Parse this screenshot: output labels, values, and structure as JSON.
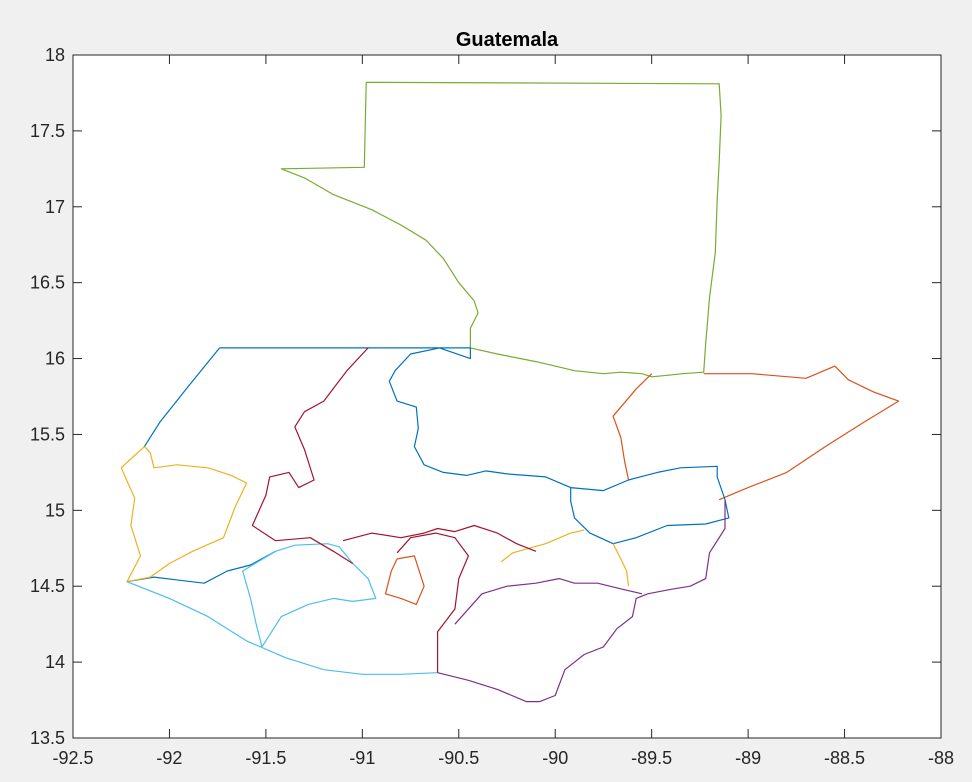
{
  "chart_data": {
    "type": "map",
    "title": "Guatemala",
    "xlim": [
      -92.5,
      -88
    ],
    "ylim": [
      13.5,
      18
    ],
    "xticks": [
      -92.5,
      -92,
      -91.5,
      -91,
      -90.5,
      -90,
      -89.5,
      -89,
      -88.5,
      -88
    ],
    "yticks": [
      13.5,
      14,
      14.5,
      15,
      15.5,
      16,
      16.5,
      17,
      17.5,
      18
    ],
    "xtick_labels": [
      "-92.5",
      "-92",
      "-91.5",
      "-91",
      "-90.5",
      "-90",
      "-89.5",
      "-89",
      "-88.5",
      "-88"
    ],
    "ytick_labels": [
      "13.5",
      "14",
      "14.5",
      "15",
      "15.5",
      "16",
      "16.5",
      "17",
      "17.5",
      "18"
    ],
    "grid": false,
    "box": true,
    "series": [
      {
        "color": "#77ac30",
        "points": [
          [
            -90.98,
            17.82
          ],
          [
            -89.15,
            17.81
          ],
          [
            -89.14,
            17.6
          ],
          [
            -89.15,
            17.3
          ],
          [
            -89.16,
            17.05
          ],
          [
            -89.17,
            16.7
          ],
          [
            -89.2,
            16.4
          ],
          [
            -89.22,
            16.1
          ],
          [
            -89.23,
            15.91
          ],
          [
            -89.34,
            15.9
          ],
          [
            -89.42,
            15.89
          ],
          [
            -89.5,
            15.88
          ],
          [
            -89.55,
            15.9
          ],
          [
            -89.66,
            15.91
          ],
          [
            -89.75,
            15.9
          ],
          [
            -89.9,
            15.92
          ],
          [
            -90.0,
            15.95
          ],
          [
            -90.1,
            15.98
          ],
          [
            -90.3,
            16.03
          ],
          [
            -90.44,
            16.07
          ],
          [
            -90.44,
            16.2
          ],
          [
            -90.4,
            16.3
          ],
          [
            -90.42,
            16.38
          ],
          [
            -90.5,
            16.5
          ],
          [
            -90.58,
            16.66
          ],
          [
            -90.67,
            16.78
          ],
          [
            -90.8,
            16.88
          ],
          [
            -90.95,
            16.98
          ],
          [
            -91.15,
            17.08
          ],
          [
            -91.3,
            17.19
          ],
          [
            -91.42,
            17.25
          ],
          [
            -90.99,
            17.26
          ],
          [
            -90.98,
            17.82
          ]
        ]
      },
      {
        "color": "#d95319",
        "points": [
          [
            -89.23,
            15.9
          ],
          [
            -88.98,
            15.9
          ],
          [
            -88.7,
            15.87
          ],
          [
            -88.55,
            15.95
          ],
          [
            -88.48,
            15.86
          ],
          [
            -88.35,
            15.78
          ],
          [
            -88.22,
            15.72
          ],
          [
            -88.4,
            15.58
          ],
          [
            -88.6,
            15.42
          ],
          [
            -88.8,
            15.25
          ],
          [
            -89.0,
            15.15
          ],
          [
            -89.15,
            15.07
          ]
        ]
      },
      {
        "color": "#d95319",
        "points": [
          [
            -89.5,
            15.9
          ],
          [
            -89.58,
            15.8
          ],
          [
            -89.7,
            15.62
          ],
          [
            -89.66,
            15.48
          ],
          [
            -89.64,
            15.32
          ],
          [
            -89.62,
            15.2
          ]
        ]
      },
      {
        "color": "#0072bd",
        "points": [
          [
            -91.74,
            16.07
          ],
          [
            -90.97,
            16.07
          ],
          [
            -90.44,
            16.07
          ],
          [
            -90.44,
            16.0
          ],
          [
            -90.6,
            16.07
          ],
          [
            -90.75,
            16.03
          ],
          [
            -90.83,
            15.92
          ],
          [
            -90.86,
            15.85
          ],
          [
            -90.82,
            15.72
          ],
          [
            -90.72,
            15.68
          ],
          [
            -90.71,
            15.54
          ],
          [
            -90.73,
            15.42
          ],
          [
            -90.68,
            15.3
          ],
          [
            -90.58,
            15.25
          ],
          [
            -90.46,
            15.23
          ],
          [
            -90.36,
            15.26
          ],
          [
            -90.25,
            15.24
          ],
          [
            -90.05,
            15.22
          ],
          [
            -89.92,
            15.15
          ]
        ]
      },
      {
        "color": "#0072bd",
        "points": [
          [
            -91.74,
            16.07
          ],
          [
            -91.9,
            15.82
          ],
          [
            -92.05,
            15.58
          ],
          [
            -92.13,
            15.42
          ]
        ]
      },
      {
        "color": "#0072bd",
        "points": [
          [
            -89.92,
            15.15
          ],
          [
            -89.75,
            15.13
          ],
          [
            -89.62,
            15.2
          ],
          [
            -89.47,
            15.25
          ],
          [
            -89.35,
            15.28
          ],
          [
            -89.16,
            15.29
          ],
          [
            -89.16,
            15.22
          ],
          [
            -89.12,
            15.07
          ],
          [
            -89.1,
            14.95
          ],
          [
            -89.22,
            14.91
          ],
          [
            -89.42,
            14.9
          ],
          [
            -89.58,
            14.82
          ],
          [
            -89.7,
            14.78
          ],
          [
            -89.82,
            14.85
          ],
          [
            -89.9,
            14.95
          ],
          [
            -89.92,
            15.06
          ],
          [
            -89.92,
            15.15
          ]
        ]
      },
      {
        "color": "#0072bd",
        "points": [
          [
            -92.22,
            14.53
          ],
          [
            -92.08,
            14.56
          ],
          [
            -91.95,
            14.54
          ],
          [
            -91.82,
            14.52
          ],
          [
            -91.7,
            14.6
          ],
          [
            -91.58,
            14.64
          ],
          [
            -91.45,
            14.73
          ]
        ]
      },
      {
        "color": "#edb120",
        "points": [
          [
            -92.13,
            15.42
          ],
          [
            -92.25,
            15.28
          ],
          [
            -92.18,
            15.08
          ],
          [
            -92.2,
            14.9
          ],
          [
            -92.15,
            14.7
          ],
          [
            -92.22,
            14.53
          ],
          [
            -92.1,
            14.56
          ],
          [
            -92.0,
            14.65
          ],
          [
            -91.88,
            14.73
          ],
          [
            -91.72,
            14.82
          ],
          [
            -91.66,
            15.02
          ],
          [
            -91.6,
            15.18
          ],
          [
            -91.68,
            15.23
          ],
          [
            -91.8,
            15.28
          ],
          [
            -91.96,
            15.3
          ],
          [
            -92.08,
            15.28
          ],
          [
            -92.1,
            15.38
          ],
          [
            -92.13,
            15.42
          ]
        ]
      },
      {
        "color": "#edb120",
        "points": [
          [
            -90.28,
            14.66
          ],
          [
            -90.22,
            14.72
          ],
          [
            -90.05,
            14.78
          ],
          [
            -89.92,
            14.85
          ],
          [
            -89.85,
            14.87
          ]
        ]
      },
      {
        "color": "#edb120",
        "points": [
          [
            -89.7,
            14.78
          ],
          [
            -89.66,
            14.68
          ],
          [
            -89.63,
            14.6
          ],
          [
            -89.62,
            14.5
          ]
        ]
      },
      {
        "color": "#4dbeee",
        "points": [
          [
            -91.45,
            14.73
          ],
          [
            -91.62,
            14.6
          ],
          [
            -91.58,
            14.42
          ],
          [
            -91.55,
            14.25
          ],
          [
            -91.52,
            14.1
          ],
          [
            -91.42,
            14.3
          ],
          [
            -91.28,
            14.38
          ],
          [
            -91.15,
            14.42
          ],
          [
            -91.05,
            14.4
          ],
          [
            -90.93,
            14.42
          ],
          [
            -90.97,
            14.55
          ],
          [
            -91.05,
            14.65
          ],
          [
            -91.12,
            14.76
          ],
          [
            -91.18,
            14.78
          ],
          [
            -91.35,
            14.77
          ],
          [
            -91.45,
            14.73
          ]
        ]
      },
      {
        "color": "#4dbeee",
        "points": [
          [
            -92.22,
            14.53
          ],
          [
            -92.0,
            14.42
          ],
          [
            -91.8,
            14.3
          ],
          [
            -91.6,
            14.14
          ],
          [
            -91.4,
            14.03
          ],
          [
            -91.2,
            13.95
          ],
          [
            -91.0,
            13.92
          ],
          [
            -90.8,
            13.92
          ],
          [
            -90.61,
            13.93
          ]
        ]
      },
      {
        "color": "#a2142f",
        "points": [
          [
            -91.05,
            14.65
          ],
          [
            -91.15,
            14.73
          ],
          [
            -91.27,
            14.82
          ],
          [
            -91.45,
            14.8
          ],
          [
            -91.57,
            14.9
          ],
          [
            -91.5,
            15.1
          ],
          [
            -91.48,
            15.22
          ],
          [
            -91.38,
            15.25
          ],
          [
            -91.33,
            15.15
          ],
          [
            -91.25,
            15.2
          ],
          [
            -91.3,
            15.4
          ],
          [
            -91.35,
            15.55
          ],
          [
            -91.3,
            15.65
          ],
          [
            -91.2,
            15.72
          ],
          [
            -91.08,
            15.92
          ],
          [
            -90.97,
            16.07
          ]
        ]
      },
      {
        "color": "#a2142f",
        "points": [
          [
            -91.1,
            14.8
          ],
          [
            -90.95,
            14.85
          ],
          [
            -90.8,
            14.82
          ],
          [
            -90.68,
            14.85
          ],
          [
            -90.61,
            14.88
          ],
          [
            -90.52,
            14.86
          ],
          [
            -90.42,
            14.9
          ],
          [
            -90.3,
            14.85
          ],
          [
            -90.2,
            14.78
          ],
          [
            -90.1,
            14.73
          ]
        ]
      },
      {
        "color": "#a2142f",
        "points": [
          [
            -90.82,
            14.72
          ],
          [
            -90.75,
            14.82
          ],
          [
            -90.62,
            14.85
          ],
          [
            -90.52,
            14.82
          ],
          [
            -90.45,
            14.7
          ],
          [
            -90.5,
            14.55
          ],
          [
            -90.52,
            14.35
          ],
          [
            -90.61,
            14.2
          ],
          [
            -90.61,
            13.93
          ]
        ]
      },
      {
        "color": "#d95319",
        "points": [
          [
            -90.82,
            14.68
          ],
          [
            -90.73,
            14.7
          ],
          [
            -90.68,
            14.5
          ],
          [
            -90.72,
            14.38
          ],
          [
            -90.8,
            14.42
          ],
          [
            -90.88,
            14.45
          ],
          [
            -90.85,
            14.6
          ],
          [
            -90.82,
            14.68
          ]
        ]
      },
      {
        "color": "#7e2f8e",
        "points": [
          [
            -90.61,
            13.93
          ],
          [
            -90.45,
            13.88
          ],
          [
            -90.3,
            13.82
          ],
          [
            -90.15,
            13.74
          ],
          [
            -90.08,
            13.74
          ],
          [
            -90.0,
            13.78
          ],
          [
            -89.95,
            13.95
          ],
          [
            -89.85,
            14.05
          ],
          [
            -89.75,
            14.1
          ],
          [
            -89.68,
            14.22
          ],
          [
            -89.6,
            14.3
          ],
          [
            -89.58,
            14.42
          ],
          [
            -89.52,
            14.45
          ],
          [
            -89.4,
            14.48
          ],
          [
            -89.3,
            14.5
          ],
          [
            -89.22,
            14.55
          ],
          [
            -89.2,
            14.72
          ],
          [
            -89.12,
            14.88
          ],
          [
            -89.12,
            15.07
          ]
        ]
      },
      {
        "color": "#7e2f8e",
        "points": [
          [
            -90.52,
            14.25
          ],
          [
            -90.38,
            14.45
          ],
          [
            -90.25,
            14.5
          ],
          [
            -90.1,
            14.52
          ],
          [
            -89.98,
            14.55
          ],
          [
            -89.9,
            14.52
          ],
          [
            -89.78,
            14.52
          ],
          [
            -89.65,
            14.48
          ],
          [
            -89.55,
            14.45
          ]
        ]
      }
    ]
  }
}
